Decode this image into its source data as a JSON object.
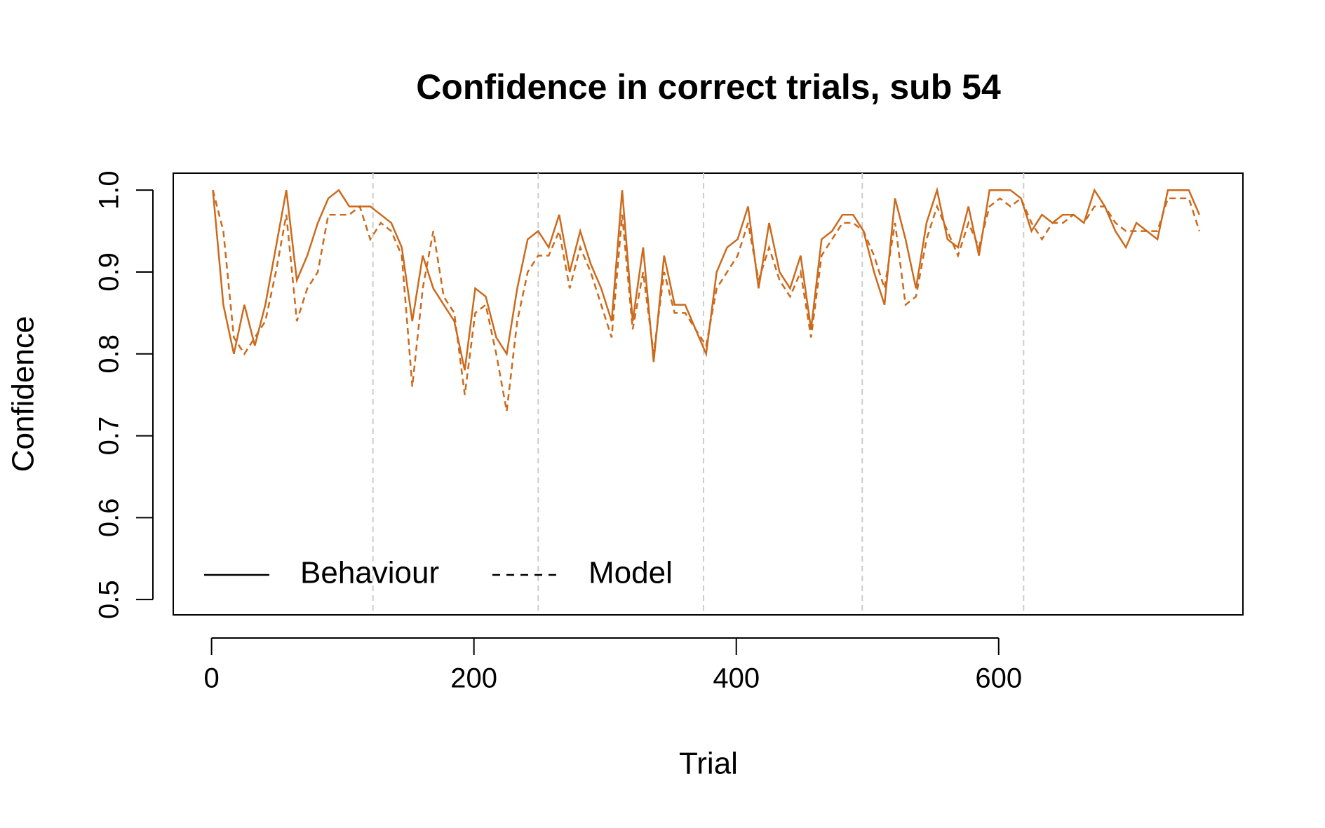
{
  "chart_data": {
    "type": "line",
    "title": "Confidence in correct trials, sub 54",
    "x_label": "Trial",
    "y_label": "Confidence",
    "x": [
      1,
      9,
      17,
      25,
      33,
      41,
      49,
      57,
      65,
      73,
      81,
      89,
      97,
      105,
      113,
      121,
      129,
      137,
      145,
      153,
      161,
      169,
      177,
      185,
      193,
      201,
      209,
      217,
      225,
      233,
      241,
      249,
      257,
      265,
      273,
      281,
      289,
      297,
      305,
      313,
      321,
      329,
      337,
      345,
      353,
      361,
      369,
      377,
      385,
      393,
      401,
      409,
      417,
      425,
      433,
      441,
      449,
      457,
      465,
      473,
      481,
      489,
      497,
      505,
      513,
      521,
      529,
      537,
      545,
      553,
      561,
      569,
      577,
      585,
      593,
      601,
      609,
      617,
      625,
      633,
      641,
      649,
      657,
      665,
      673,
      681,
      689,
      697,
      705,
      713,
      721,
      729,
      737,
      745,
      753
    ],
    "series": [
      {
        "name": "Behaviour",
        "color": "#cc6a1c",
        "dash": "solid",
        "values": [
          1.0,
          0.86,
          0.8,
          0.86,
          0.81,
          0.86,
          0.93,
          1.0,
          0.89,
          0.92,
          0.96,
          0.99,
          1.0,
          0.98,
          0.98,
          0.98,
          0.97,
          0.96,
          0.93,
          0.84,
          0.92,
          0.88,
          0.86,
          0.84,
          0.78,
          0.88,
          0.87,
          0.82,
          0.8,
          0.88,
          0.94,
          0.95,
          0.93,
          0.97,
          0.9,
          0.95,
          0.91,
          0.88,
          0.84,
          1.0,
          0.84,
          0.93,
          0.79,
          0.92,
          0.86,
          0.86,
          0.83,
          0.8,
          0.9,
          0.93,
          0.94,
          0.98,
          0.88,
          0.96,
          0.9,
          0.88,
          0.92,
          0.83,
          0.94,
          0.95,
          0.97,
          0.97,
          0.95,
          0.9,
          0.86,
          0.99,
          0.94,
          0.88,
          0.96,
          1.0,
          0.94,
          0.93,
          0.98,
          0.92,
          1.0,
          1.0,
          1.0,
          0.99,
          0.95,
          0.97,
          0.96,
          0.97,
          0.97,
          0.96,
          1.0,
          0.98,
          0.95,
          0.93,
          0.96,
          0.95,
          0.94,
          1.0,
          1.0,
          1.0,
          0.97
        ]
      },
      {
        "name": "Model",
        "color": "#cc6a1c",
        "dash": "dashed",
        "values": [
          1.0,
          0.95,
          0.82,
          0.8,
          0.82,
          0.84,
          0.9,
          0.97,
          0.84,
          0.88,
          0.9,
          0.97,
          0.97,
          0.97,
          0.98,
          0.94,
          0.96,
          0.95,
          0.92,
          0.76,
          0.88,
          0.95,
          0.87,
          0.85,
          0.75,
          0.85,
          0.86,
          0.8,
          0.73,
          0.84,
          0.9,
          0.92,
          0.92,
          0.95,
          0.88,
          0.93,
          0.9,
          0.86,
          0.82,
          0.97,
          0.83,
          0.9,
          0.8,
          0.9,
          0.85,
          0.85,
          0.83,
          0.81,
          0.88,
          0.9,
          0.92,
          0.96,
          0.89,
          0.93,
          0.89,
          0.87,
          0.9,
          0.82,
          0.92,
          0.94,
          0.96,
          0.96,
          0.95,
          0.92,
          0.88,
          0.96,
          0.86,
          0.87,
          0.94,
          0.98,
          0.95,
          0.92,
          0.96,
          0.93,
          0.98,
          0.99,
          0.98,
          0.99,
          0.96,
          0.94,
          0.96,
          0.96,
          0.97,
          0.96,
          0.98,
          0.98,
          0.96,
          0.95,
          0.95,
          0.95,
          0.95,
          0.99,
          0.99,
          0.99,
          0.95
        ]
      }
    ],
    "xlim": [
      -29.2,
      786.2
    ],
    "ylim": [
      0.4813,
      1.0207
    ],
    "xticks": [
      0,
      200,
      400,
      600
    ],
    "yticks": [
      0.5,
      0.6,
      0.7,
      0.8,
      0.9,
      {
        "value": 1.0,
        "label": "1.0"
      }
    ],
    "vlines": [
      123,
      249,
      375,
      496,
      619
    ],
    "vline_color": "#cccccc",
    "legend": "bottom-left"
  }
}
